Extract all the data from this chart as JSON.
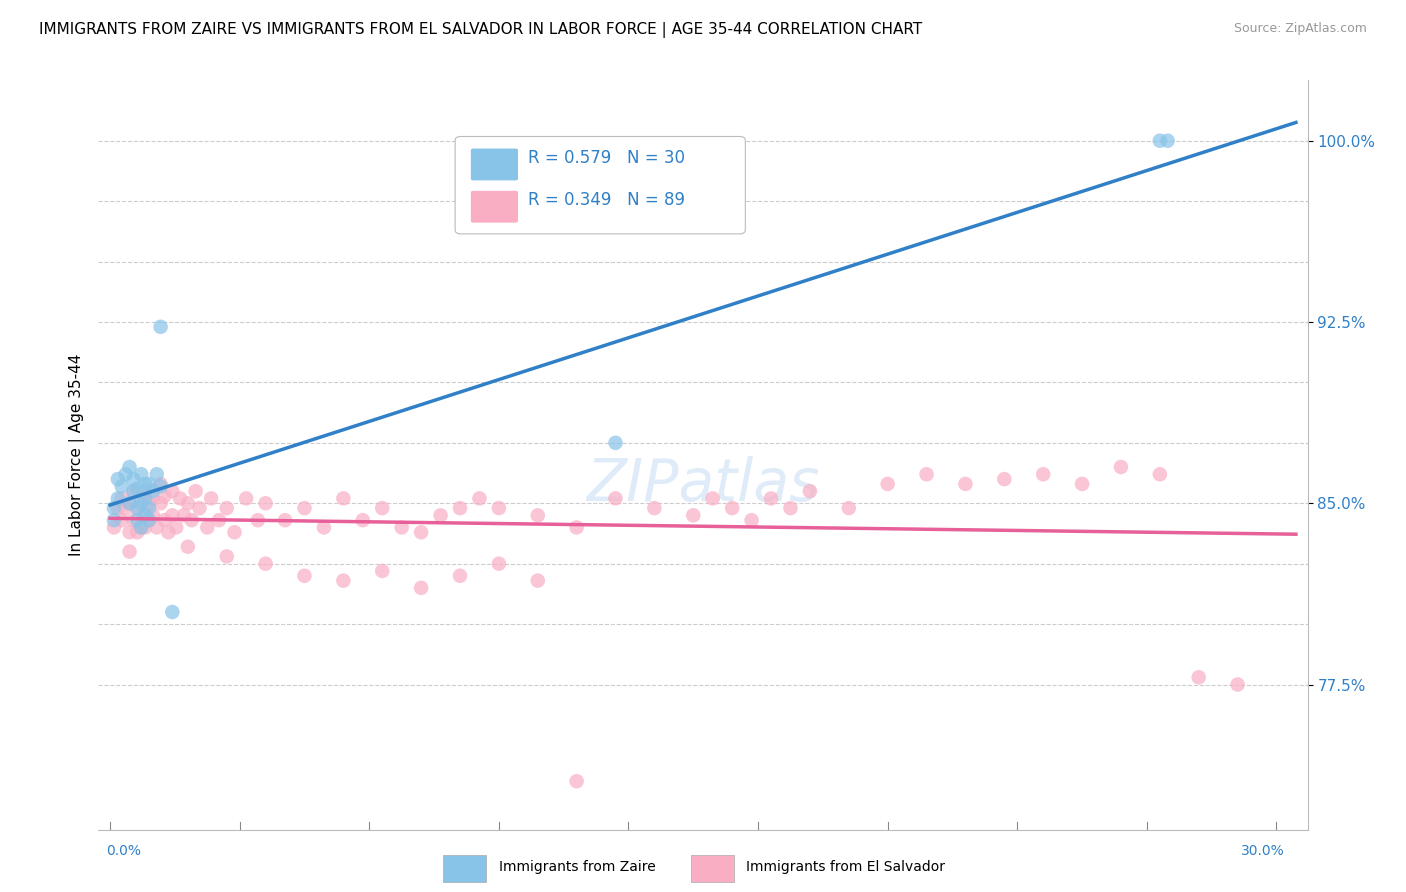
{
  "title": "IMMIGRANTS FROM ZAIRE VS IMMIGRANTS FROM EL SALVADOR IN LABOR FORCE | AGE 35-44 CORRELATION CHART",
  "source": "Source: ZipAtlas.com",
  "ylabel": "In Labor Force | Age 35-44",
  "ylim": [
    0.715,
    1.025
  ],
  "xlim": [
    -0.003,
    0.308
  ],
  "watermark": "ZIPatlas",
  "zaire_R": 0.579,
  "zaire_N": 30,
  "salvador_R": 0.349,
  "salvador_N": 89,
  "zaire_color": "#88c4e8",
  "salvador_color": "#f9aec4",
  "zaire_line_color": "#3080c8",
  "salvador_line_color": "#e8609a",
  "background_color": "#ffffff",
  "legend_text_color": "#3080c8",
  "ytick_vals": [
    0.775,
    0.85,
    0.925,
    1.0
  ],
  "ytick_labels": [
    "77.5%",
    "85.0%",
    "92.5%",
    "100.0%"
  ],
  "zaire_x": [
    0.001,
    0.001,
    0.002,
    0.002,
    0.003,
    0.004,
    0.005,
    0.005,
    0.006,
    0.006,
    0.007,
    0.007,
    0.007,
    0.008,
    0.008,
    0.008,
    0.009,
    0.009,
    0.009,
    0.01,
    0.01,
    0.01,
    0.011,
    0.012,
    0.013,
    0.013,
    0.016,
    0.13,
    0.27,
    0.272
  ],
  "zaire_y": [
    0.848,
    0.843,
    0.852,
    0.86,
    0.857,
    0.862,
    0.85,
    0.865,
    0.855,
    0.86,
    0.843,
    0.848,
    0.856,
    0.84,
    0.85,
    0.862,
    0.845,
    0.852,
    0.858,
    0.843,
    0.848,
    0.858,
    0.855,
    0.862,
    0.923,
    0.857,
    0.805,
    0.875,
    1.0,
    1.0
  ],
  "salvador_x": [
    0.001,
    0.002,
    0.003,
    0.003,
    0.004,
    0.005,
    0.005,
    0.006,
    0.006,
    0.007,
    0.007,
    0.008,
    0.008,
    0.009,
    0.009,
    0.009,
    0.01,
    0.01,
    0.011,
    0.011,
    0.012,
    0.013,
    0.013,
    0.014,
    0.014,
    0.015,
    0.016,
    0.016,
    0.017,
    0.018,
    0.019,
    0.02,
    0.021,
    0.022,
    0.023,
    0.025,
    0.026,
    0.028,
    0.03,
    0.032,
    0.035,
    0.038,
    0.04,
    0.045,
    0.05,
    0.055,
    0.06,
    0.065,
    0.07,
    0.075,
    0.08,
    0.085,
    0.09,
    0.095,
    0.1,
    0.11,
    0.12,
    0.13,
    0.14,
    0.15,
    0.155,
    0.16,
    0.165,
    0.17,
    0.175,
    0.18,
    0.19,
    0.2,
    0.21,
    0.22,
    0.23,
    0.24,
    0.25,
    0.26,
    0.27,
    0.28,
    0.29,
    0.005,
    0.02,
    0.03,
    0.04,
    0.05,
    0.06,
    0.07,
    0.08,
    0.09,
    0.1,
    0.11,
    0.12
  ],
  "salvador_y": [
    0.84,
    0.848,
    0.852,
    0.843,
    0.848,
    0.838,
    0.85,
    0.843,
    0.855,
    0.838,
    0.848,
    0.84,
    0.852,
    0.84,
    0.845,
    0.855,
    0.843,
    0.85,
    0.845,
    0.852,
    0.84,
    0.85,
    0.858,
    0.843,
    0.853,
    0.838,
    0.845,
    0.855,
    0.84,
    0.852,
    0.845,
    0.85,
    0.843,
    0.855,
    0.848,
    0.84,
    0.852,
    0.843,
    0.848,
    0.838,
    0.852,
    0.843,
    0.85,
    0.843,
    0.848,
    0.84,
    0.852,
    0.843,
    0.848,
    0.84,
    0.838,
    0.845,
    0.848,
    0.852,
    0.848,
    0.845,
    0.84,
    0.852,
    0.848,
    0.845,
    0.852,
    0.848,
    0.843,
    0.852,
    0.848,
    0.855,
    0.848,
    0.858,
    0.862,
    0.858,
    0.86,
    0.862,
    0.858,
    0.865,
    0.862,
    0.778,
    0.775,
    0.83,
    0.832,
    0.828,
    0.825,
    0.82,
    0.818,
    0.822,
    0.815,
    0.82,
    0.825,
    0.818,
    0.735
  ]
}
